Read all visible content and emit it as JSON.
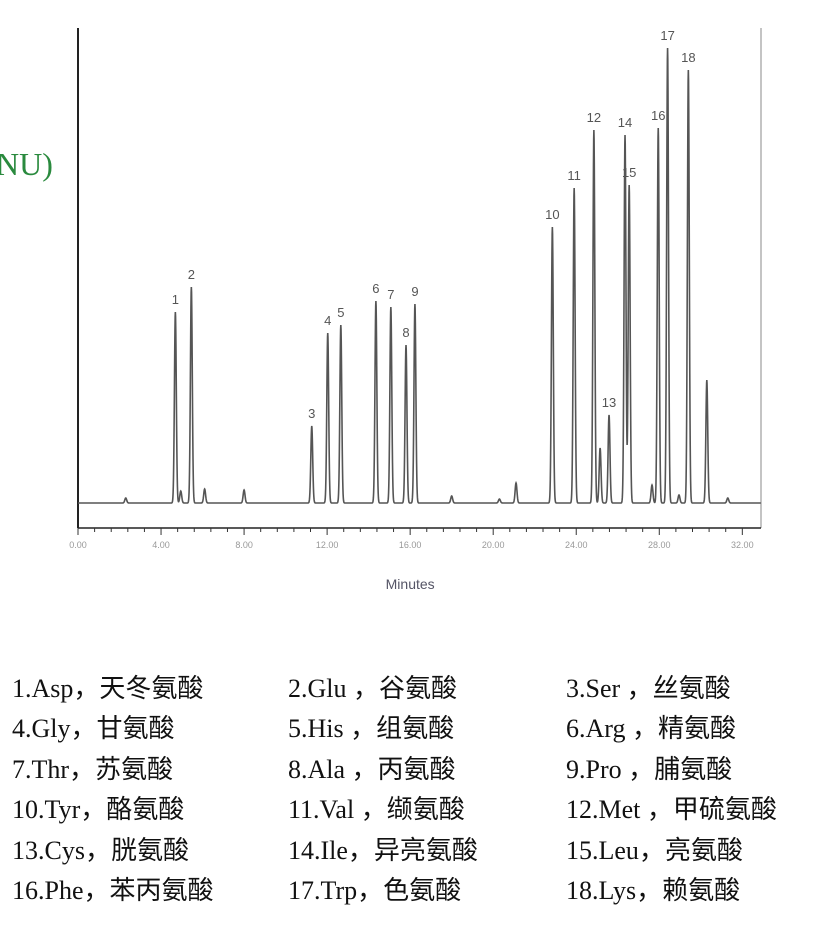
{
  "chart_data": {
    "type": "line",
    "title": "",
    "xlabel": "Minutes",
    "ylabel_fragment": "NU)",
    "xlim": [
      0,
      32.9
    ],
    "ylim": [
      -25,
      475
    ],
    "x_ticks": [
      0,
      4,
      8,
      12,
      16,
      20,
      24,
      28,
      32
    ],
    "x_tick_labels": [
      "0.00",
      "4.00",
      "8.00",
      "12.00",
      "16.00",
      "20.00",
      "24.00",
      "28.00",
      "32.00"
    ],
    "grid": false,
    "trace_color": "#555555",
    "peaks": [
      {
        "label": "1",
        "x": 4.69,
        "y": 191
      },
      {
        "label": "2",
        "x": 5.46,
        "y": 216
      },
      {
        "label": "3",
        "x": 11.26,
        "y": 77
      },
      {
        "label": "4",
        "x": 12.03,
        "y": 170
      },
      {
        "label": "5",
        "x": 12.66,
        "y": 178
      },
      {
        "label": "6",
        "x": 14.35,
        "y": 202
      },
      {
        "label": "7",
        "x": 15.07,
        "y": 196
      },
      {
        "label": "8",
        "x": 15.8,
        "y": 158
      },
      {
        "label": "9",
        "x": 16.23,
        "y": 199
      },
      {
        "label": "10",
        "x": 22.85,
        "y": 276
      },
      {
        "label": "11",
        "x": 23.9,
        "y": 315
      },
      {
        "label": "12",
        "x": 24.85,
        "y": 373
      },
      {
        "label": "13",
        "x": 25.58,
        "y": 88
      },
      {
        "label": "14",
        "x": 26.35,
        "y": 368
      },
      {
        "label": "15",
        "x": 26.55,
        "y": 318
      },
      {
        "label": "16",
        "x": 27.95,
        "y": 375
      },
      {
        "label": "17",
        "x": 28.4,
        "y": 455
      },
      {
        "label": "18",
        "x": 29.4,
        "y": 433
      }
    ],
    "minor_peaks": [
      {
        "x": 2.3,
        "y": 5
      },
      {
        "x": 4.95,
        "y": 12
      },
      {
        "x": 6.1,
        "y": 14
      },
      {
        "x": 8.0,
        "y": 13
      },
      {
        "x": 18.0,
        "y": 7
      },
      {
        "x": 20.3,
        "y": 4
      },
      {
        "x": 21.1,
        "y": 20
      },
      {
        "x": 25.15,
        "y": 55
      },
      {
        "x": 27.65,
        "y": 18
      },
      {
        "x": 28.95,
        "y": 8
      },
      {
        "x": 30.29,
        "y": 123
      },
      {
        "x": 31.3,
        "y": 5
      }
    ]
  },
  "legend": [
    "1.Asp，天冬氨酸",
    "2.Glu ，谷氨酸",
    "3.Ser ，丝氨酸",
    "4.Gly，甘氨酸",
    "5.His ，组氨酸",
    "6.Arg ，精氨酸",
    "7.Thr，苏氨酸",
    "8.Ala ，丙氨酸",
    "9.Pro ，脯氨酸",
    "10.Tyr，酪氨酸",
    "11.Val ，缬氨酸",
    "12.Met ，甲硫氨酸",
    "13.Cys，胱氨酸",
    "14.Ile，异亮氨酸",
    "15.Leu，亮氨酸",
    "16.Phe，苯丙氨酸",
    "17.Trp，色氨酸",
    "18.Lys，赖氨酸"
  ]
}
